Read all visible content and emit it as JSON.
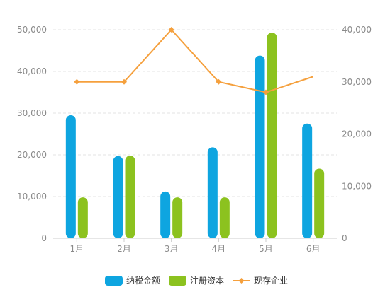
{
  "chart_data": {
    "type": "bar",
    "categories": [
      "1月",
      "2月",
      "3月",
      "4月",
      "5月",
      "6月"
    ],
    "series": [
      {
        "name": "纳税金额",
        "kind": "bar",
        "axis": "left",
        "color": "#0ea5e0",
        "values": [
          29500,
          19700,
          11200,
          21800,
          43800,
          27500
        ]
      },
      {
        "name": "注册资本",
        "kind": "bar",
        "axis": "left",
        "color": "#8cc21f",
        "values": [
          9800,
          19800,
          9800,
          9800,
          49300,
          16700
        ]
      },
      {
        "name": "现存企业",
        "kind": "line",
        "axis": "right",
        "color": "#f5a03d",
        "values": [
          30000,
          30000,
          40000,
          30000,
          28000,
          31000
        ]
      }
    ],
    "left_axis": {
      "ylim": [
        0,
        50000
      ],
      "ticks": [
        "0",
        "10,000",
        "20,000",
        "30,000",
        "40,000",
        "50,000"
      ]
    },
    "right_axis": {
      "ylim": [
        0,
        40000
      ],
      "ticks": [
        "0",
        "10,000",
        "20,000",
        "30,000",
        "40,000"
      ]
    },
    "grid": true,
    "legend_position": "bottom-center"
  }
}
